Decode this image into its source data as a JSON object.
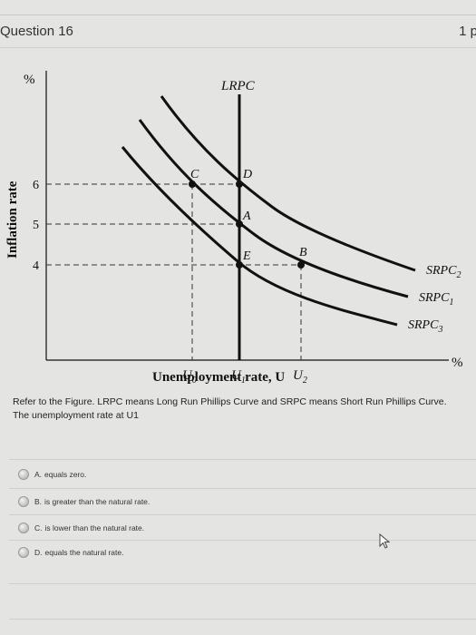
{
  "header": {
    "title": "Question 16",
    "points": "1 p"
  },
  "graph": {
    "y_label": "Inflation rate",
    "y_unit": "%",
    "x_unit": "%",
    "x_title": "Unemployment rate, U",
    "y_ticks": [
      "6",
      "5",
      "4"
    ],
    "x_ticks": [
      {
        "base": "U",
        "sub": "0"
      },
      {
        "base": "U",
        "sub": "1"
      },
      {
        "base": "U",
        "sub": "2"
      }
    ],
    "lrpc_label": "LRPC",
    "curve_labels": [
      {
        "base": "SRPC",
        "sub": "2"
      },
      {
        "base": "SRPC",
        "sub": "1"
      },
      {
        "base": "SRPC",
        "sub": "3"
      }
    ],
    "points": [
      "C",
      "D",
      "A",
      "E",
      "B"
    ],
    "colors": {
      "ink": "#111111"
    }
  },
  "question": {
    "text_line1": "Refer to the Figure. LRPC means Long Run Phillips Curve and SRPC means Short Run Phillips Curve.",
    "text_line2": "The unemployment rate at U1"
  },
  "options": [
    {
      "letter": "A.",
      "text": "equals zero."
    },
    {
      "letter": "B.",
      "text": "is greater than the natural rate."
    },
    {
      "letter": "C.",
      "text": "is lower than the natural rate."
    },
    {
      "letter": "D.",
      "text": "equals the natural rate."
    }
  ],
  "icons": {
    "cursor": "mouse-pointer-icon",
    "radio": "radio-button-icon"
  }
}
